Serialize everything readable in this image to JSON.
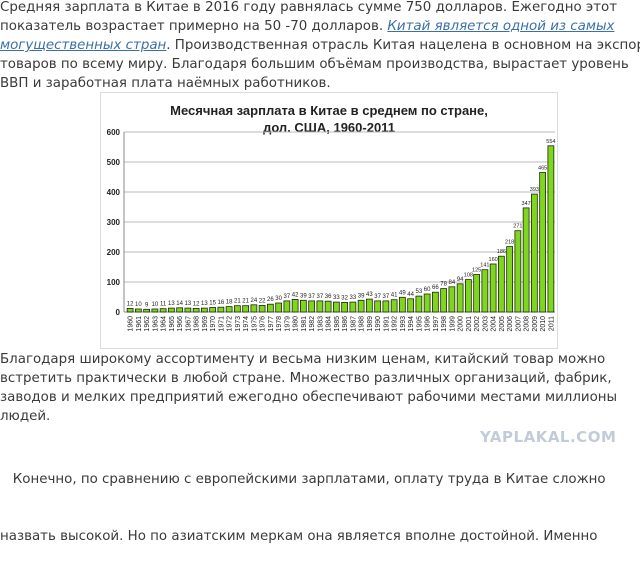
{
  "article": {
    "p1": {
      "line1": "Средняя зарплата в Китае в 2016 году равнялась сумме 750 долларов. Ежегодно этот",
      "line2_text": "показатель возрастает примерно на 50 -70 долларов. ",
      "line2_link": "Китай является одной из самых",
      "line3_link": "могущественных стран",
      "line3_text": ". Производственная отрасль Китая нацелена в основном на экспорт",
      "line4": "товаров по всему миру. Благодаря большим объёмам производства, вырастает уровень",
      "line5": "ВВП и заработная плата наёмных работников."
    },
    "p2": {
      "line1": "Благодаря широкому ассортименту и весьма низким ценам, китайский товар можно",
      "line2": "встретить практически в любой стране. Множество различных организаций, фабрик,",
      "line3": "заводов и мелких предприятий ежегодно обеспечивают рабочими местами миллионы",
      "line4": "людей."
    },
    "p3": {
      "line1": "   Конечно, по сравнению с европейскими зарплатами, оплату труда в Китае сложно",
      "line2": "назвать высокой. Но по азиатским меркам она является вполне достойной. Именно"
    },
    "watermark": "YAPLAKAL.COM",
    "link_color": "#3b6fa8"
  },
  "chart_data": {
    "type": "bar",
    "title_line1": "Месячная зарплата в Китае в среднем по стране,",
    "title_line2": "дол. США, 1960-2011",
    "xlabel": "",
    "ylabel": "",
    "ylim": [
      0,
      600
    ],
    "yticks": [
      0,
      100,
      200,
      300,
      400,
      500,
      600
    ],
    "grid": true,
    "bar_color": "#7fd61e",
    "categories": [
      "1960",
      "1961",
      "1962",
      "1963",
      "1964",
      "1965",
      "1966",
      "1967",
      "1968",
      "1969",
      "1970",
      "1971",
      "1972",
      "1973",
      "1974",
      "1975",
      "1976",
      "1977",
      "1978",
      "1979",
      "1980",
      "1981",
      "1982",
      "1983",
      "1984",
      "1985",
      "1986",
      "1987",
      "1988",
      "1989",
      "1990",
      "1991",
      "1992",
      "1993",
      "1994",
      "1995",
      "1996",
      "1997",
      "1998",
      "1999",
      "2000",
      "2001",
      "2002",
      "2003",
      "2004",
      "2005",
      "2006",
      "2007",
      "2008",
      "2009",
      "2010",
      "2011"
    ],
    "values": [
      12,
      10,
      9,
      10,
      11,
      13,
      14,
      13,
      12,
      13,
      15,
      16,
      18,
      21,
      21,
      24,
      22,
      26,
      30,
      37,
      42,
      39,
      37,
      37,
      36,
      33,
      32,
      33,
      39,
      43,
      37,
      37,
      41,
      49,
      44,
      53,
      60,
      66,
      78,
      84,
      94,
      108,
      125,
      141,
      160,
      186,
      218,
      271,
      347,
      393,
      465,
      554
    ]
  }
}
